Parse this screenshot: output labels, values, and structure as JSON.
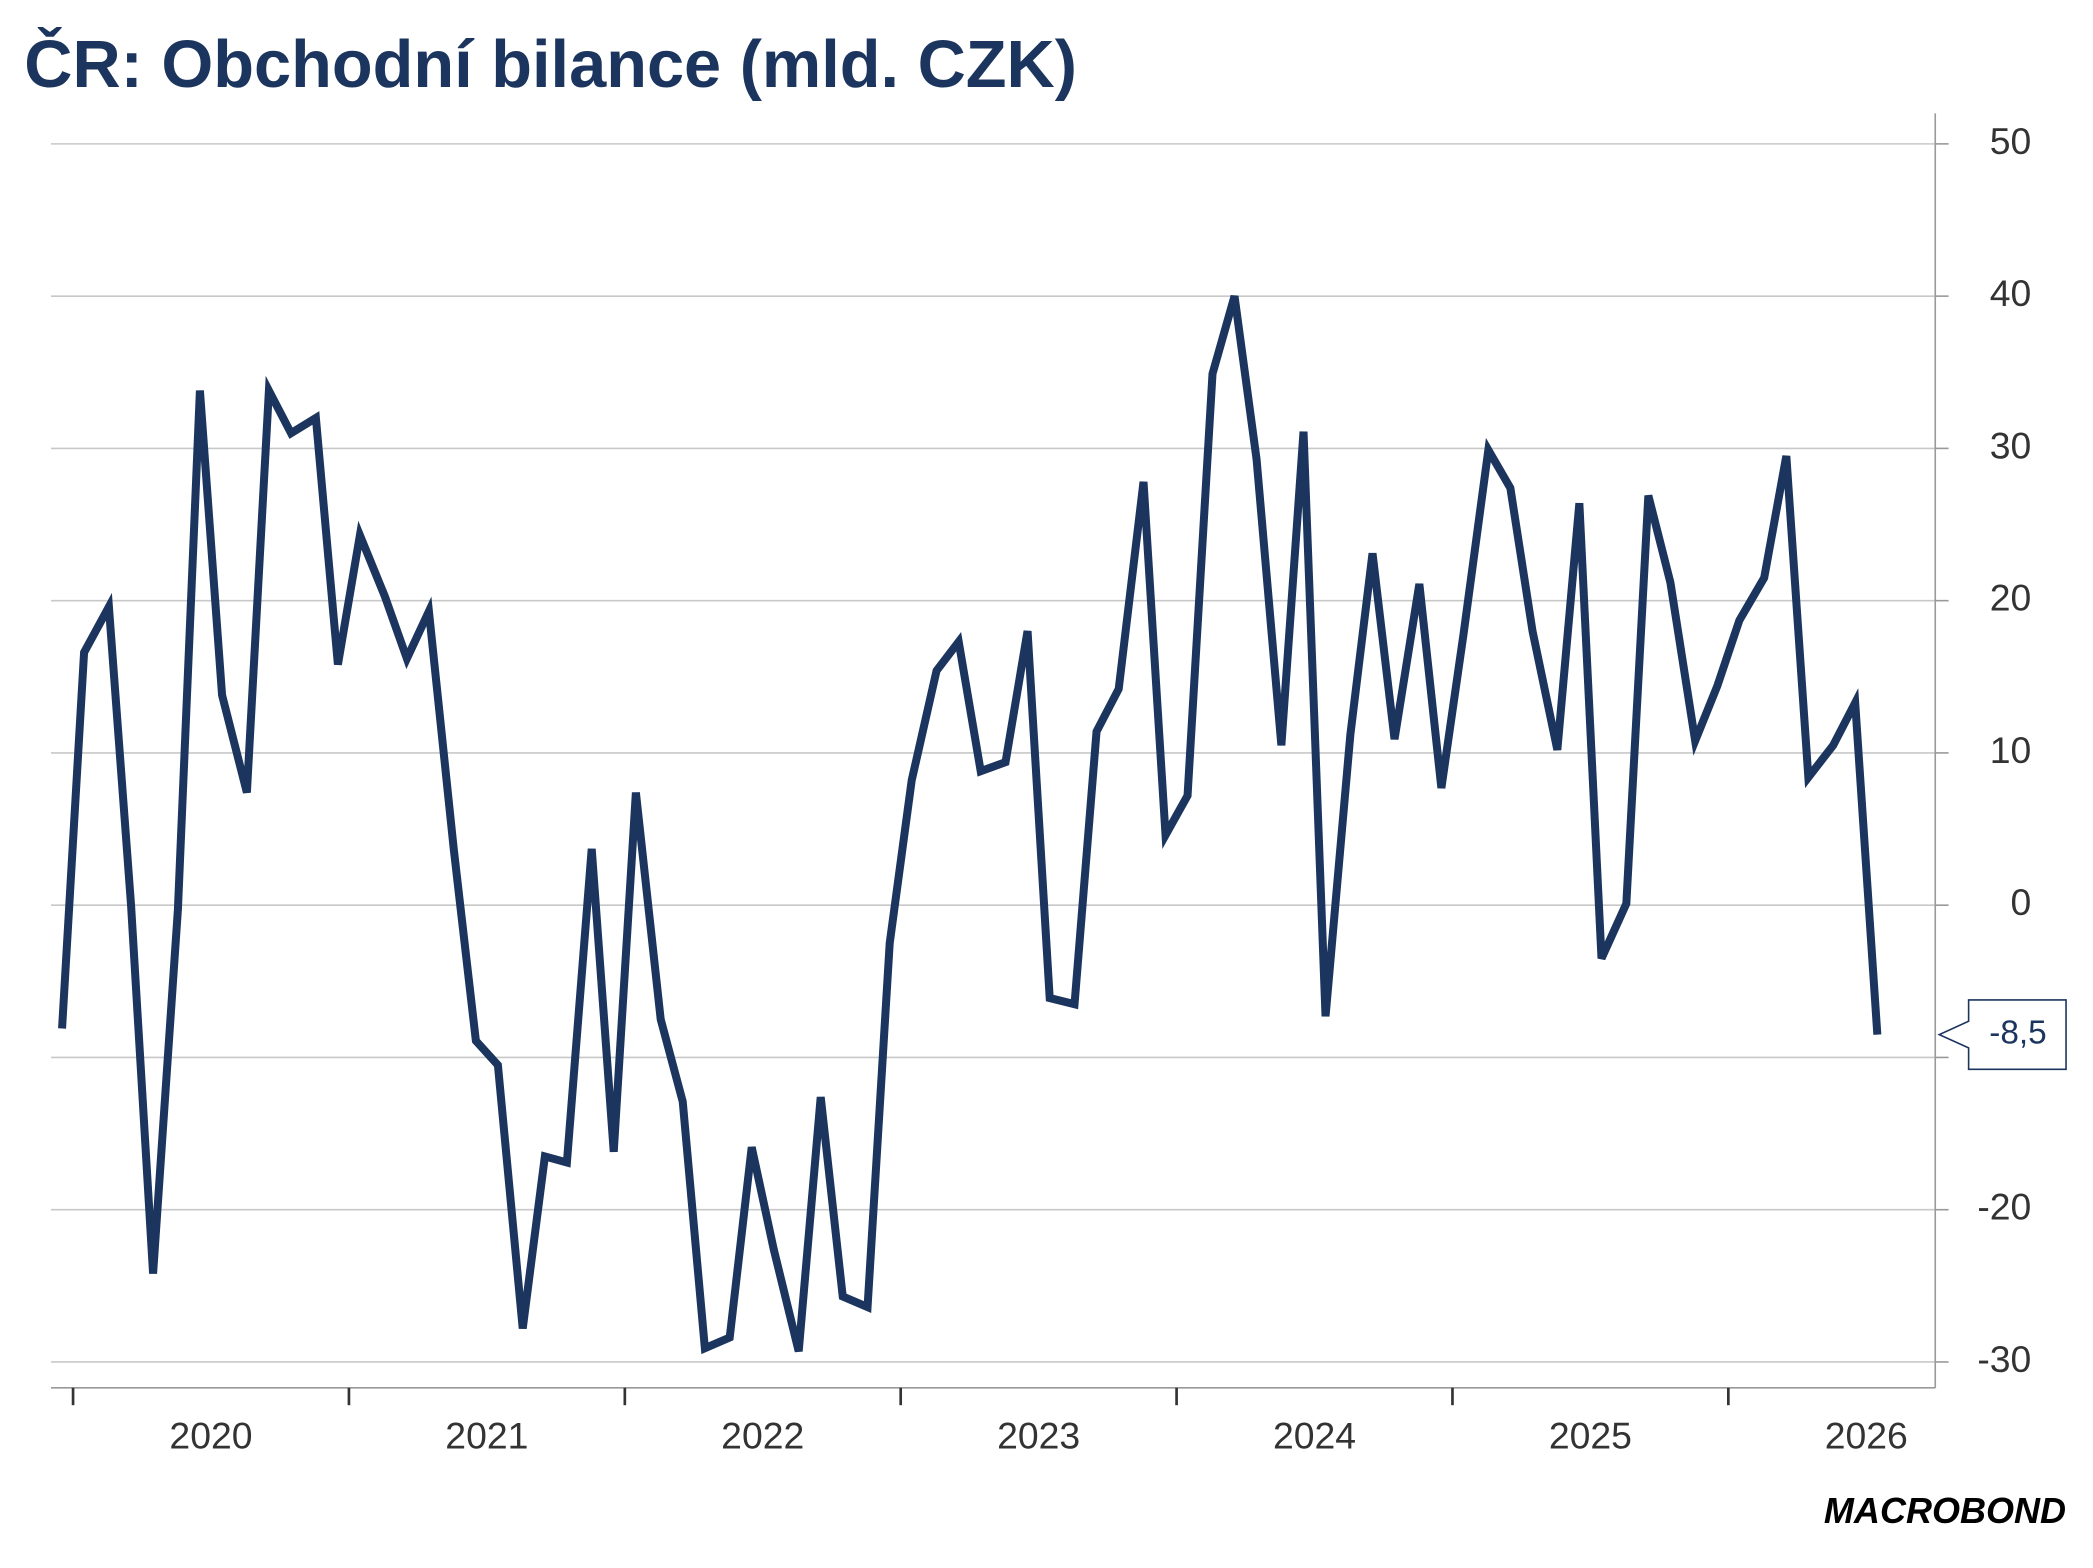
{
  "chart_data": {
    "type": "line",
    "title": "ČR: Obchodní bilance (mld. CZK)",
    "source": "MACROBOND",
    "x": [
      2019.96,
      2020.04,
      2020.13,
      2020.21,
      2020.29,
      2020.38,
      2020.46,
      2020.54,
      2020.63,
      2020.71,
      2020.79,
      2020.88,
      2020.96,
      2021.04,
      2021.13,
      2021.21,
      2021.29,
      2021.38,
      2021.46,
      2021.54,
      2021.63,
      2021.71,
      2021.79,
      2021.88,
      2021.96,
      2022.04,
      2022.13,
      2022.21,
      2022.29,
      2022.38,
      2022.46,
      2022.54,
      2022.63,
      2022.71,
      2022.79,
      2022.88,
      2022.96,
      2023.04,
      2023.13,
      2023.21,
      2023.29,
      2023.38,
      2023.46,
      2023.54,
      2023.63,
      2023.71,
      2023.79,
      2023.88,
      2023.96,
      2024.04,
      2024.13,
      2024.21,
      2024.29,
      2024.38,
      2024.46,
      2024.54,
      2024.63,
      2024.71,
      2024.79,
      2024.88,
      2024.96,
      2025.04,
      2025.13,
      2025.21,
      2025.29,
      2025.38,
      2025.46,
      2025.54,
      2025.63,
      2025.71,
      2025.79,
      2025.88,
      2025.96,
      2026.04,
      2026.13,
      2026.21,
      2026.29,
      2026.38,
      2026.46,
      2026.54
    ],
    "series": [
      {
        "color": "#1c355e",
        "values": [
          -8.1,
          16.6,
          19.6,
          0,
          -24.2,
          -0.3,
          33.8,
          13.8,
          7.4,
          33.8,
          31.0,
          32.0,
          15.8,
          24.3,
          20.3,
          16.2,
          19.3,
          3.7,
          -8.9,
          -10.5,
          -27.8,
          -16.5,
          -16.9,
          3.7,
          -16.2,
          7.4,
          -7.5,
          -12.9,
          -29.1,
          -28.4,
          -15.9,
          -22.6,
          -29.3,
          -12.6,
          -25.7,
          -26.4,
          -2.5,
          8.2,
          15.4,
          17.3,
          8.8,
          9.4,
          18.0,
          -6.1,
          -6.5,
          11.4,
          14.2,
          27.8,
          4.6,
          7.2,
          34.9,
          40.0,
          29.3,
          10.5,
          31.1,
          -7.3,
          11.2,
          23.1,
          10.9,
          21.1,
          7.7,
          17.8,
          29.9,
          27.4,
          18.0,
          10.2,
          26.4,
          -3.5,
          0.1,
          26.9,
          21.2,
          10.8,
          14.4,
          18.7,
          21.5,
          29.5,
          8.4,
          10.5,
          13.3,
          -8.5
        ],
        "value_labels": [
          null,
          null,
          null,
          null,
          null,
          null,
          null,
          null,
          null,
          null,
          null,
          null,
          null,
          null,
          null,
          null,
          null,
          null,
          null,
          null,
          null,
          null,
          null,
          null,
          null,
          null,
          null,
          null,
          null,
          null,
          null,
          null,
          null,
          null,
          null,
          null,
          null,
          null,
          null,
          null,
          null,
          null,
          null,
          null,
          null,
          null,
          null,
          null,
          null,
          null,
          null,
          null,
          null,
          null,
          null,
          null,
          null,
          null,
          null,
          null,
          null,
          null,
          null,
          null,
          null,
          null,
          null,
          null,
          null,
          null,
          null,
          null,
          null,
          null,
          null,
          null,
          null,
          null,
          null,
          "-8,5"
        ]
      }
    ],
    "xlim": [
      2019.92,
      2026.75
    ],
    "xticks": [
      2020,
      2021,
      2022,
      2023,
      2024,
      2025,
      2026
    ],
    "xtick_labels": [
      {
        "value": 2020.5,
        "label": "2020"
      },
      {
        "value": 2021.5,
        "label": "2021"
      },
      {
        "value": 2022.5,
        "label": "2022"
      },
      {
        "value": 2023.5,
        "label": "2023"
      },
      {
        "value": 2024.5,
        "label": "2024"
      },
      {
        "value": 2025.5,
        "label": "2025"
      },
      {
        "value": 2026.5,
        "label": "2026"
      }
    ],
    "ylim": [
      -31.7,
      52
    ],
    "yticks": [
      50,
      40,
      30,
      20,
      10,
      0,
      -10,
      -20,
      -30
    ],
    "grid": true
  }
}
